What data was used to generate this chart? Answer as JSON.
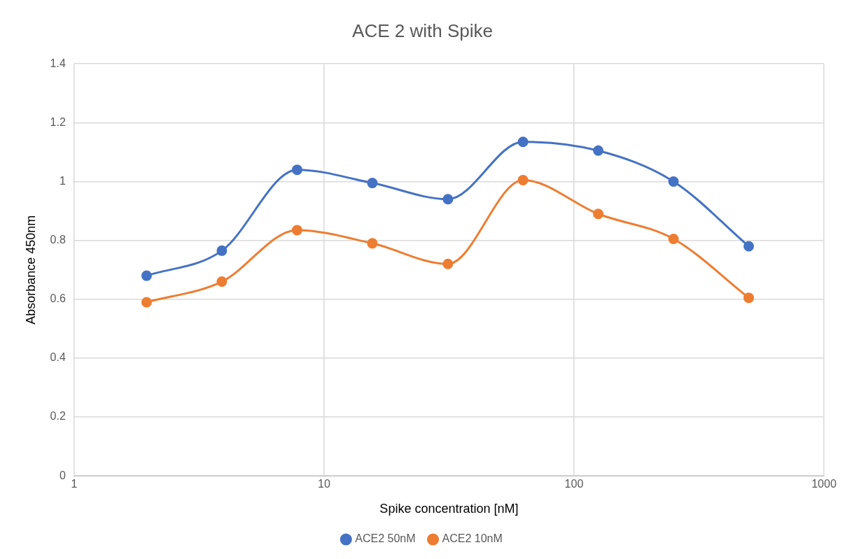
{
  "chart_data": {
    "type": "line",
    "title": "ACE 2 with Spike",
    "xlabel": "Spike concentration [nM]",
    "ylabel": "Absorbance 450nm",
    "x": [
      1.95,
      3.9,
      7.8,
      15.6,
      31.3,
      62.5,
      125,
      250,
      500
    ],
    "series": [
      {
        "name": "ACE2 50nM",
        "color": "#4472c4",
        "values": [
          0.68,
          0.765,
          1.04,
          0.995,
          0.94,
          1.135,
          1.105,
          1.0,
          0.78
        ]
      },
      {
        "name": "ACE2 10nM",
        "color": "#ed7d31",
        "values": [
          0.59,
          0.66,
          0.835,
          0.79,
          0.72,
          1.005,
          0.89,
          0.805,
          0.605
        ]
      }
    ],
    "log": "x",
    "xlim": [
      1,
      1000
    ],
    "xticks": [
      1,
      10,
      100,
      1000
    ],
    "ylim": [
      0,
      1.4
    ],
    "yticks": [
      0,
      0.2,
      0.4,
      0.6,
      0.8,
      1,
      1.2,
      1.4
    ],
    "grid": true,
    "legend": "bottom",
    "marker": "circle",
    "line_style": "solid"
  }
}
